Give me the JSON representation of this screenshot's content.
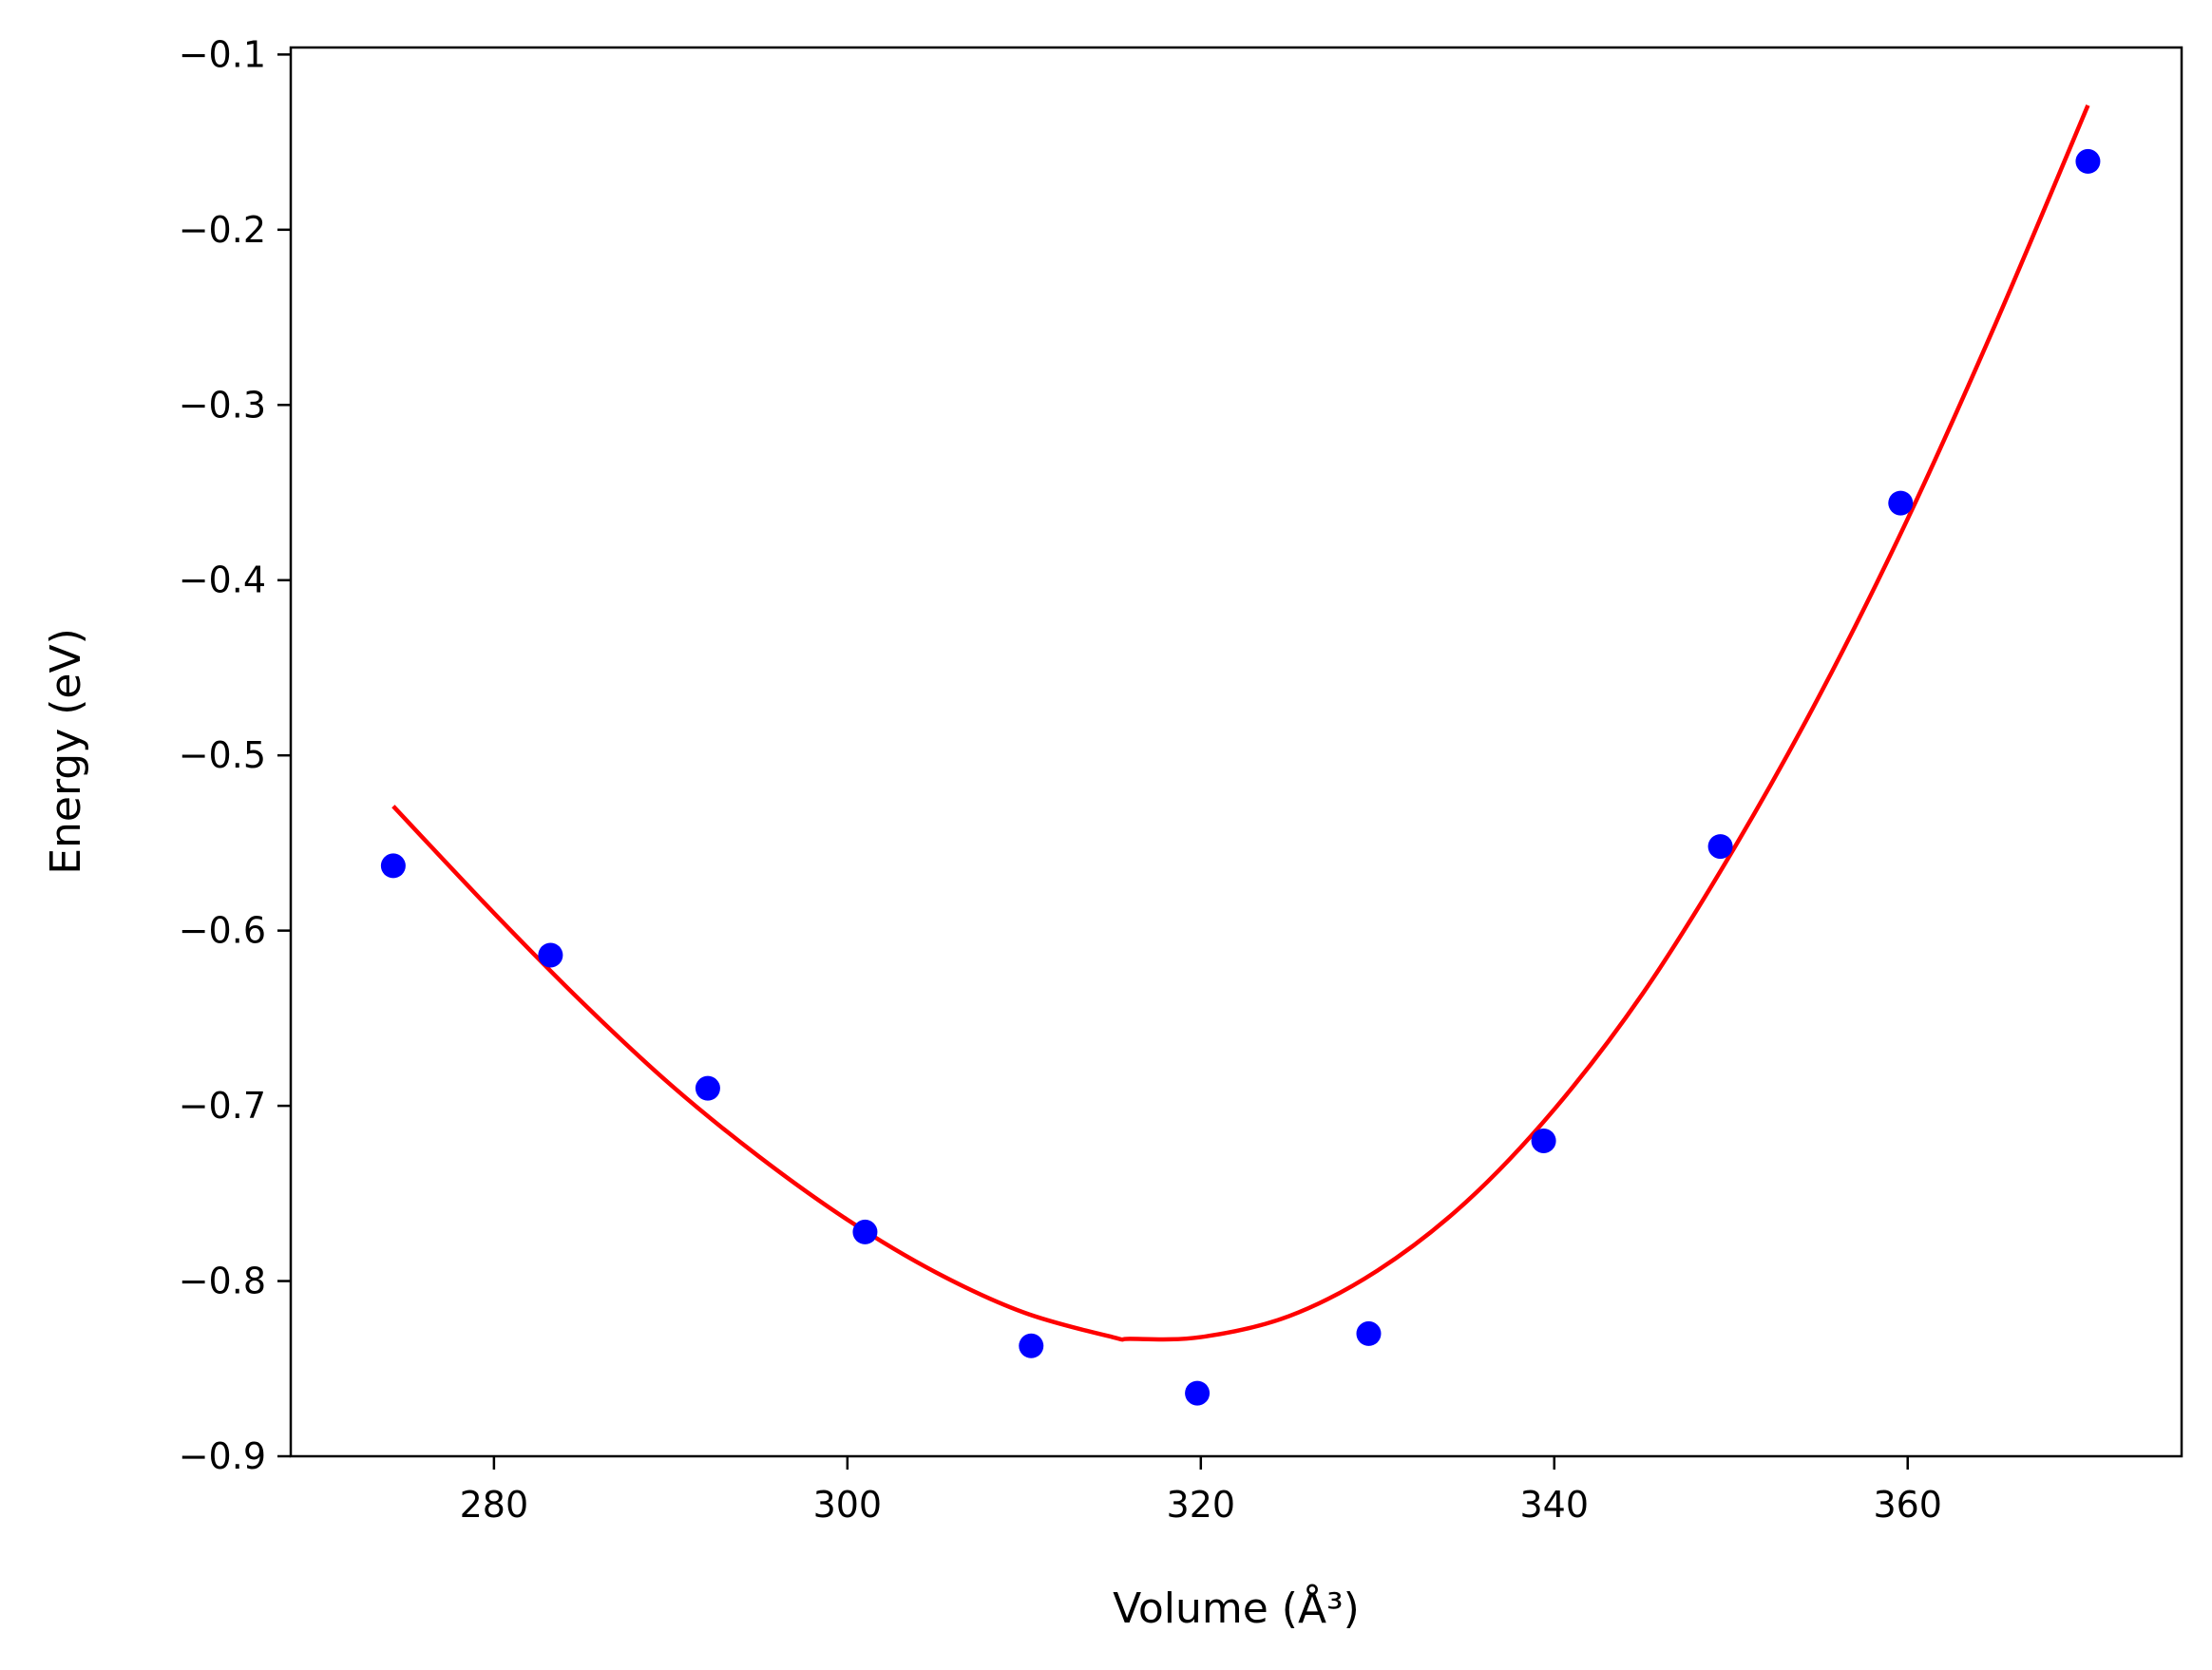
{
  "chart_data": {
    "type": "scatter",
    "title": "",
    "xlabel": "Volume (Å³)",
    "ylabel": "Energy (eV)",
    "xlim": [
      268.5,
      375.5
    ],
    "ylim": [
      -0.9,
      -0.096
    ],
    "xticks": [
      280,
      300,
      320,
      340,
      360
    ],
    "xtick_labels": [
      "280",
      "300",
      "320",
      "340",
      "360"
    ],
    "yticks": [
      -0.9,
      -0.8,
      -0.7,
      -0.6,
      -0.5,
      -0.4,
      -0.3,
      -0.2,
      -0.1
    ],
    "ytick_labels": [
      "−0.9",
      "−0.8",
      "−0.7",
      "−0.6",
      "−0.5",
      "−0.4",
      "−0.3",
      "−0.2",
      "−0.1"
    ],
    "grid": false,
    "legend": "none",
    "series": [
      {
        "kind": "scatter",
        "color": "#0000ff",
        "x": [
          274.3,
          283.2,
          292.1,
          301.0,
          310.4,
          319.8,
          329.5,
          339.4,
          349.4,
          359.6,
          370.2
        ],
        "y": [
          -0.563,
          -0.614,
          -0.69,
          -0.772,
          -0.837,
          -0.864,
          -0.83,
          -0.72,
          -0.552,
          -0.356,
          -0.161
        ]
      },
      {
        "kind": "line",
        "color": "#ff0000",
        "x": [
          274.3,
          280,
          285,
          290,
          295,
          300,
          305,
          310,
          315,
          316,
          320,
          325,
          330,
          335,
          340,
          345,
          350,
          355,
          360,
          365,
          370.2
        ],
        "y": [
          -0.529,
          -0.59,
          -0.641,
          -0.688,
          -0.729,
          -0.765,
          -0.795,
          -0.818,
          -0.832,
          -0.833,
          -0.832,
          -0.82,
          -0.794,
          -0.755,
          -0.702,
          -0.636,
          -0.556,
          -0.466,
          -0.365,
          -0.253,
          -0.129
        ]
      }
    ]
  }
}
